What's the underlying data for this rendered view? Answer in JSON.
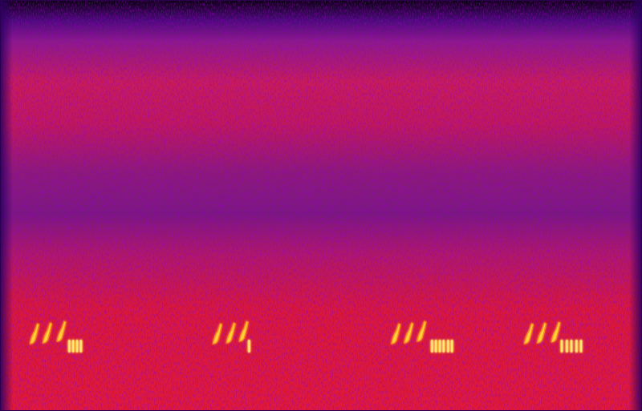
{
  "chart_data": {
    "type": "spectrogram",
    "tick_labels": false,
    "grid": false,
    "xlim": [
      0,
      100
    ],
    "ylim": [
      0,
      100
    ],
    "series": [
      {
        "marker": "upsweep",
        "color": "#ffd23c",
        "x": [
          5.3,
          7.3,
          9.5,
          33.8,
          35.9,
          37.9,
          61.6,
          63.6,
          65.6,
          82.3,
          84.3,
          86.5
        ],
        "values": [
          18.7,
          18.9,
          19.3,
          18.7,
          18.9,
          19.3,
          18.7,
          18.9,
          19.3,
          18.7,
          18.9,
          19.1
        ]
      },
      {
        "marker": "trill",
        "color": "#ffe680",
        "x": [
          10.8,
          11.4,
          12.0,
          12.6,
          38.8,
          67.3,
          67.9,
          68.5,
          69.1,
          69.8,
          70.4,
          87.5,
          88.3,
          89.0,
          89.8,
          90.5
        ],
        "values": [
          15.8,
          15.8,
          15.8,
          15.8,
          15.8,
          15.8,
          15.8,
          15.8,
          15.8,
          15.8,
          15.8,
          15.8,
          15.8,
          15.8,
          15.8,
          15.8
        ]
      }
    ]
  }
}
